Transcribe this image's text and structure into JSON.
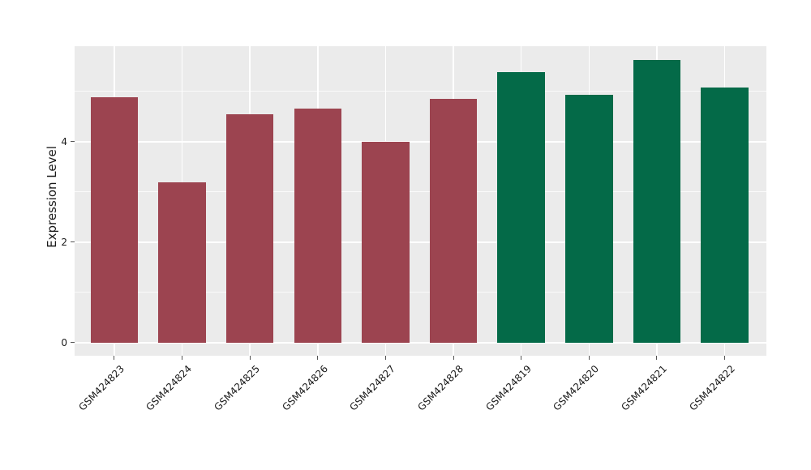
{
  "chart_data": {
    "type": "bar",
    "ylabel": "Expression Level",
    "xlabel": "",
    "categories": [
      "GSM424823",
      "GSM424824",
      "GSM424825",
      "GSM424826",
      "GSM424827",
      "GSM424828",
      "GSM424819",
      "GSM424820",
      "GSM424821",
      "GSM424822"
    ],
    "values": [
      4.88,
      3.19,
      4.55,
      4.66,
      4.0,
      4.85,
      5.39,
      4.94,
      5.63,
      5.08
    ],
    "bar_colors": [
      "#9c4450",
      "#9c4450",
      "#9c4450",
      "#9c4450",
      "#9c4450",
      "#9c4450",
      "#046a48",
      "#046a48",
      "#046a48",
      "#046a48"
    ],
    "groups": [
      {
        "name": "red-group",
        "color": "#9c4450",
        "categories": [
          "GSM424823",
          "GSM424824",
          "GSM424825",
          "GSM424826",
          "GSM424827",
          "GSM424828"
        ]
      },
      {
        "name": "green-group",
        "color": "#046a48",
        "categories": [
          "GSM424819",
          "GSM424820",
          "GSM424821",
          "GSM424822"
        ]
      }
    ],
    "yticks": [
      0,
      2,
      4
    ],
    "yticks_minor": [
      1,
      3,
      5
    ],
    "ylim": [
      -0.26,
      5.9
    ],
    "xlim": [
      -0.585,
      9.615
    ],
    "bar_width": 0.7,
    "grid": "on",
    "legend": "none",
    "colors": {
      "figure_background": "#ffffff",
      "panel_background": "#ebebeb",
      "grid": "#ffffff",
      "tick": "#555555",
      "text": "#1a1a1a"
    }
  }
}
